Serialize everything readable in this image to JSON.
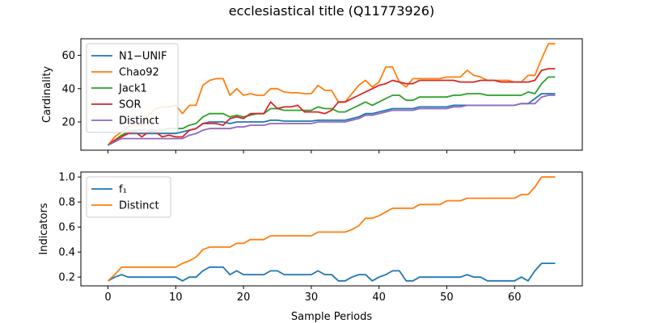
{
  "title": "ecclesiastical title (Q11773926)",
  "colors": {
    "blue": "#1f77b4",
    "orange": "#ff7f0e",
    "green": "#2ca02c",
    "red": "#d62728",
    "purple": "#9467bd"
  },
  "chart_data": [
    {
      "type": "line",
      "xlabel": "",
      "ylabel": "Cardinality",
      "xlim": [
        -4,
        70
      ],
      "ylim": [
        3,
        70
      ],
      "xticks": [
        0,
        10,
        20,
        30,
        40,
        50,
        60
      ],
      "xtick_labels_visible": false,
      "yticks": [
        20,
        40,
        60
      ],
      "legend": "top-left",
      "x": [
        0,
        1,
        2,
        3,
        4,
        5,
        6,
        7,
        8,
        9,
        10,
        11,
        12,
        13,
        14,
        15,
        16,
        17,
        18,
        19,
        20,
        21,
        22,
        23,
        24,
        25,
        26,
        27,
        28,
        29,
        30,
        31,
        32,
        33,
        34,
        35,
        36,
        37,
        38,
        39,
        40,
        41,
        42,
        43,
        44,
        45,
        46,
        47,
        48,
        49,
        50,
        51,
        52,
        53,
        54,
        55,
        56,
        57,
        58,
        59,
        60,
        61,
        62,
        63,
        64,
        65,
        66
      ],
      "series": [
        {
          "name": "N1−UNIF",
          "color": "#1f77b4",
          "values": [
            6,
            9,
            12,
            13,
            13,
            13,
            13,
            13,
            13,
            13,
            13,
            14,
            15,
            16,
            19,
            20,
            20,
            20,
            19,
            20,
            20,
            20,
            20,
            20,
            21,
            21,
            20.5,
            20.5,
            20.5,
            20.5,
            20.5,
            21,
            21,
            21,
            21,
            21,
            22,
            23,
            25,
            25,
            26,
            27,
            28,
            28,
            28,
            28,
            29,
            29,
            29,
            29,
            29,
            30,
            30,
            30,
            30,
            30,
            30,
            30,
            30,
            30,
            30,
            31,
            31,
            34,
            37,
            37,
            37
          ]
        },
        {
          "name": "Chao92",
          "color": "#ff7f0e",
          "values": [
            6,
            11,
            14,
            17,
            18,
            18,
            24,
            28,
            29,
            29,
            30,
            25,
            30,
            30,
            42,
            45,
            46,
            46,
            36,
            40,
            36,
            37,
            36,
            36,
            40,
            40,
            38,
            37.5,
            37.5,
            37,
            37,
            42,
            39,
            39,
            32,
            32,
            37,
            42,
            45,
            41,
            44,
            53,
            53,
            44,
            41,
            46,
            46,
            46,
            46,
            46,
            47,
            47,
            47,
            51,
            48,
            47,
            45,
            45,
            45,
            45,
            44,
            44,
            48,
            48,
            58,
            67,
            67
          ]
        },
        {
          "name": "Jack1",
          "color": "#2ca02c",
          "values": [
            6,
            9,
            12,
            14,
            15,
            15,
            15,
            15,
            15,
            16,
            16,
            16,
            18,
            19,
            23,
            25,
            25,
            25,
            23,
            24,
            23,
            24,
            25,
            25,
            28,
            28,
            27,
            27,
            27,
            27,
            27,
            29,
            28,
            28,
            26,
            26,
            28,
            30,
            32,
            30,
            32,
            34,
            36,
            36,
            33,
            33,
            35,
            35,
            35,
            35,
            35,
            36,
            36,
            37,
            37,
            37,
            36,
            36,
            36,
            36,
            36,
            36,
            38,
            37,
            43,
            47,
            47
          ]
        },
        {
          "name": "SOR",
          "color": "#d62728",
          "values": [
            6,
            9,
            11,
            13,
            14,
            11,
            14,
            14,
            11,
            12,
            11,
            11,
            15,
            16,
            19,
            19,
            19,
            18,
            22,
            23,
            22,
            25,
            25,
            25,
            32,
            28,
            29,
            29,
            30,
            26,
            26,
            26,
            25,
            27,
            32,
            32,
            34,
            36,
            38,
            40,
            42,
            43,
            45,
            44,
            43,
            43,
            45,
            45,
            45,
            45,
            45,
            45,
            44,
            44,
            44,
            45,
            45,
            45,
            44,
            44,
            44,
            44,
            44,
            45,
            51,
            52,
            52
          ]
        },
        {
          "name": "Distinct",
          "color": "#9467bd",
          "values": [
            6,
            8,
            10,
            10,
            10,
            10,
            10,
            10,
            10,
            10,
            10,
            10,
            12,
            13,
            15,
            16,
            16,
            16,
            16,
            17,
            17,
            18,
            18,
            18,
            19,
            19,
            19,
            19,
            19,
            19,
            19,
            20,
            20,
            20,
            20,
            20,
            21,
            22,
            24,
            24,
            25,
            26,
            27,
            27,
            27,
            27,
            28,
            28,
            28,
            28,
            28,
            29,
            29,
            30,
            30,
            30,
            30,
            30,
            30,
            30,
            30,
            31,
            31,
            31,
            35,
            36,
            36
          ]
        }
      ]
    },
    {
      "type": "line",
      "xlabel": "Sample Periods",
      "ylabel": "Indicators",
      "xlim": [
        -4,
        70
      ],
      "ylim": [
        0.13,
        1.04
      ],
      "xticks": [
        0,
        10,
        20,
        30,
        40,
        50,
        60
      ],
      "xtick_labels_visible": true,
      "yticks": [
        0.2,
        0.4,
        0.6,
        0.8,
        1.0
      ],
      "ytick_labels": [
        "0.2",
        "0.4",
        "0.6",
        "0.8",
        "1.0"
      ],
      "legend": "top-left",
      "x": [
        0,
        1,
        2,
        3,
        4,
        5,
        6,
        7,
        8,
        9,
        10,
        11,
        12,
        13,
        14,
        15,
        16,
        17,
        18,
        19,
        20,
        21,
        22,
        23,
        24,
        25,
        26,
        27,
        28,
        29,
        30,
        31,
        32,
        33,
        34,
        35,
        36,
        37,
        38,
        39,
        40,
        41,
        42,
        43,
        44,
        45,
        46,
        47,
        48,
        49,
        50,
        51,
        52,
        53,
        54,
        55,
        56,
        57,
        58,
        59,
        60,
        61,
        62,
        63,
        64,
        65,
        66
      ],
      "series": [
        {
          "name": "f₁",
          "color": "#1f77b4",
          "values": [
            0.17,
            0.2,
            0.22,
            0.2,
            0.2,
            0.2,
            0.2,
            0.2,
            0.2,
            0.2,
            0.2,
            0.17,
            0.2,
            0.2,
            0.25,
            0.28,
            0.28,
            0.28,
            0.22,
            0.25,
            0.22,
            0.22,
            0.22,
            0.22,
            0.25,
            0.25,
            0.22,
            0.22,
            0.22,
            0.22,
            0.22,
            0.25,
            0.22,
            0.22,
            0.17,
            0.17,
            0.2,
            0.22,
            0.22,
            0.17,
            0.2,
            0.22,
            0.25,
            0.25,
            0.17,
            0.17,
            0.2,
            0.2,
            0.2,
            0.2,
            0.2,
            0.2,
            0.2,
            0.22,
            0.2,
            0.2,
            0.17,
            0.17,
            0.17,
            0.17,
            0.17,
            0.2,
            0.17,
            0.25,
            0.31,
            0.31,
            0.31
          ]
        },
        {
          "name": "Distinct",
          "color": "#ff7f0e",
          "values": [
            0.17,
            0.22,
            0.28,
            0.28,
            0.28,
            0.28,
            0.28,
            0.28,
            0.28,
            0.28,
            0.28,
            0.31,
            0.33,
            0.36,
            0.42,
            0.44,
            0.44,
            0.44,
            0.44,
            0.47,
            0.47,
            0.5,
            0.5,
            0.5,
            0.53,
            0.53,
            0.53,
            0.53,
            0.53,
            0.53,
            0.53,
            0.56,
            0.56,
            0.56,
            0.56,
            0.56,
            0.58,
            0.61,
            0.67,
            0.67,
            0.69,
            0.72,
            0.75,
            0.75,
            0.75,
            0.75,
            0.78,
            0.78,
            0.78,
            0.78,
            0.81,
            0.81,
            0.81,
            0.83,
            0.83,
            0.83,
            0.83,
            0.83,
            0.83,
            0.83,
            0.83,
            0.86,
            0.86,
            0.92,
            1.0,
            1.0,
            1.0
          ]
        }
      ]
    }
  ]
}
